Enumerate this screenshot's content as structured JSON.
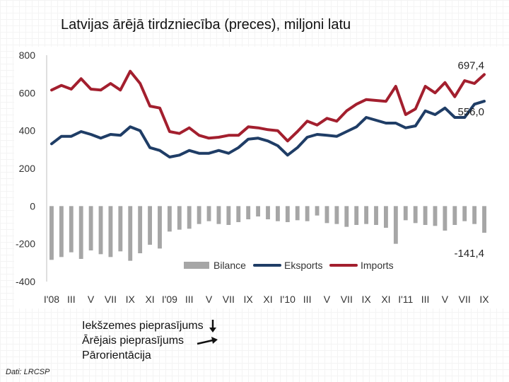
{
  "title": "Latvijas ārējā tirdzniecība (preces), miljoni latu",
  "notes": [
    {
      "text": "Iekšzemes pieprasījums",
      "arrow": "down"
    },
    {
      "text": "Ārējais pieprasījums",
      "arrow": "up-right"
    },
    {
      "text": "Pārorientācija",
      "arrow": ""
    }
  ],
  "source": "Dati: LRCSP",
  "colors": {
    "bilance": "#a6a6a6",
    "eksports": "#1f3d66",
    "imports": "#a31f2e",
    "axis_text": "#333333"
  },
  "chart_data": {
    "type": "line+bar",
    "title": "Latvijas ārējā tirdzniecība (preces), miljoni latu",
    "ylim": [
      -400,
      800
    ],
    "yticks": [
      800,
      600,
      400,
      200,
      0,
      -200,
      -400
    ],
    "ytick_labels": [
      "800",
      "600",
      "400",
      "200",
      "0",
      "-200",
      "-400"
    ],
    "xtick_labels": [
      "I'08",
      "III",
      "V",
      "VII",
      "IX",
      "XI",
      "I'09",
      "III",
      "V",
      "VII",
      "IX",
      "XI",
      "I'10",
      "III",
      "V",
      "VII",
      "IX",
      "XI",
      "I'11",
      "III",
      "V",
      "VII",
      "IX"
    ],
    "months": 45,
    "series": [
      {
        "name": "Bilance",
        "type": "bar",
        "values": [
          -285,
          -270,
          -245,
          -280,
          -235,
          -255,
          -270,
          -240,
          -290,
          -250,
          -205,
          -225,
          -135,
          -125,
          -120,
          -95,
          -80,
          -95,
          -100,
          -85,
          -70,
          -55,
          -70,
          -80,
          -85,
          -75,
          -80,
          -50,
          -90,
          -95,
          -110,
          -100,
          -95,
          -100,
          -115,
          -200,
          -75,
          -90,
          -100,
          -105,
          -130,
          -100,
          -80,
          -95,
          -141.4
        ]
      },
      {
        "name": "Eksports",
        "type": "line",
        "values": [
          330,
          370,
          370,
          395,
          380,
          360,
          380,
          375,
          420,
          400,
          310,
          295,
          260,
          270,
          295,
          280,
          280,
          295,
          280,
          310,
          355,
          360,
          345,
          320,
          270,
          310,
          365,
          380,
          375,
          370,
          395,
          420,
          470,
          455,
          440,
          440,
          415,
          425,
          505,
          485,
          520,
          470,
          470,
          540,
          556.0
        ]
      },
      {
        "name": "Imports",
        "type": "line",
        "values": [
          615,
          640,
          620,
          675,
          620,
          615,
          650,
          615,
          715,
          650,
          530,
          520,
          395,
          385,
          415,
          375,
          360,
          365,
          375,
          375,
          420,
          415,
          405,
          400,
          345,
          395,
          450,
          430,
          465,
          450,
          505,
          540,
          565,
          560,
          555,
          635,
          485,
          515,
          635,
          600,
          655,
          580,
          665,
          650,
          697.4
        ]
      }
    ],
    "end_labels": {
      "Imports": "697,4",
      "Eksports": "556,0",
      "Bilance": "-141,4"
    },
    "legend": [
      "Bilance",
      "Eksports",
      "Imports"
    ],
    "legend_position": "bottom-center",
    "grid": false
  }
}
